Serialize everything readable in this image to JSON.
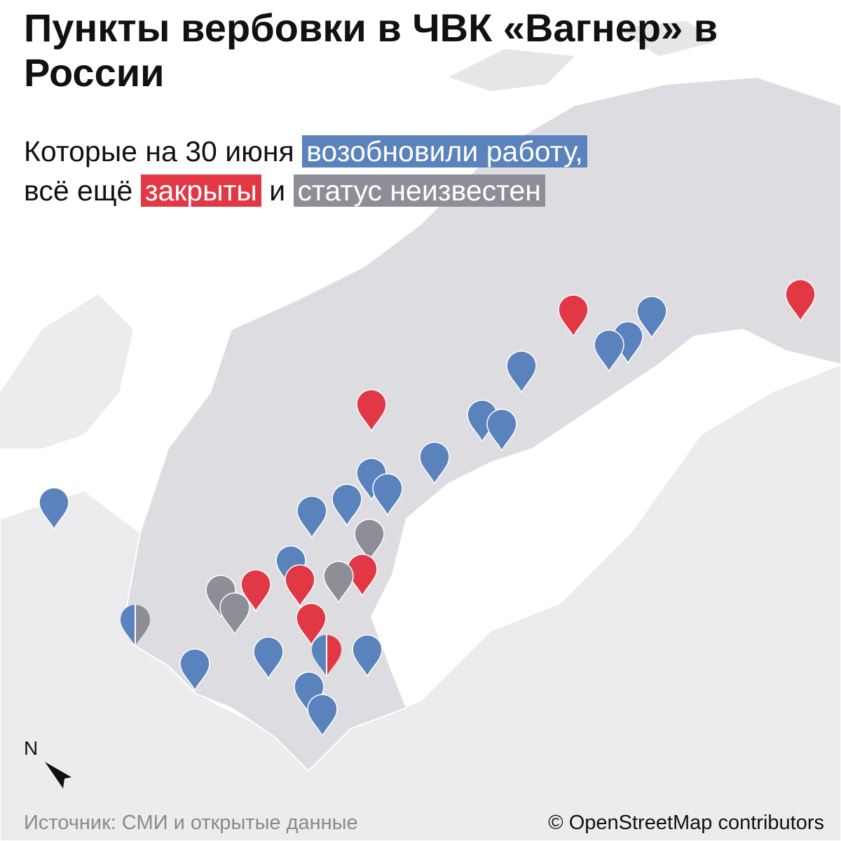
{
  "title": "Пункты вербовки в ЧВК «Вагнер» в России",
  "subtitle": {
    "part1": "Которые на 30 июня ",
    "resumed": "возобновили работу,",
    "part2": "всё ещё ",
    "closed": "закрыты",
    "part3": " и ",
    "unknown": "статус неизвестен"
  },
  "colors": {
    "resumed": "#5a82bd",
    "closed": "#e23744",
    "unknown": "#8e8f96",
    "russia": "#dcdce1",
    "land": "#ececee"
  },
  "markers": [
    "closed",
    "closed",
    "resumed",
    "resumed",
    "resumed",
    "resumed",
    "closed",
    "resumed",
    "resumed",
    "resumed",
    "resumed",
    "resumed",
    "resumed",
    "resumed",
    "resumed",
    "unknown",
    "resumed",
    "closed",
    "unknown",
    "closed",
    "closed",
    "unknown",
    "unknown",
    "closed",
    "resumed/unknown",
    "resumed/closed",
    "resumed",
    "resumed",
    "resumed",
    "resumed",
    "resumed"
  ],
  "compass": {
    "label": "N",
    "icon": "north-arrow-icon"
  },
  "source": "Источник: СМИ и открытые данные",
  "credit": "© OpenStreetMap contributors"
}
